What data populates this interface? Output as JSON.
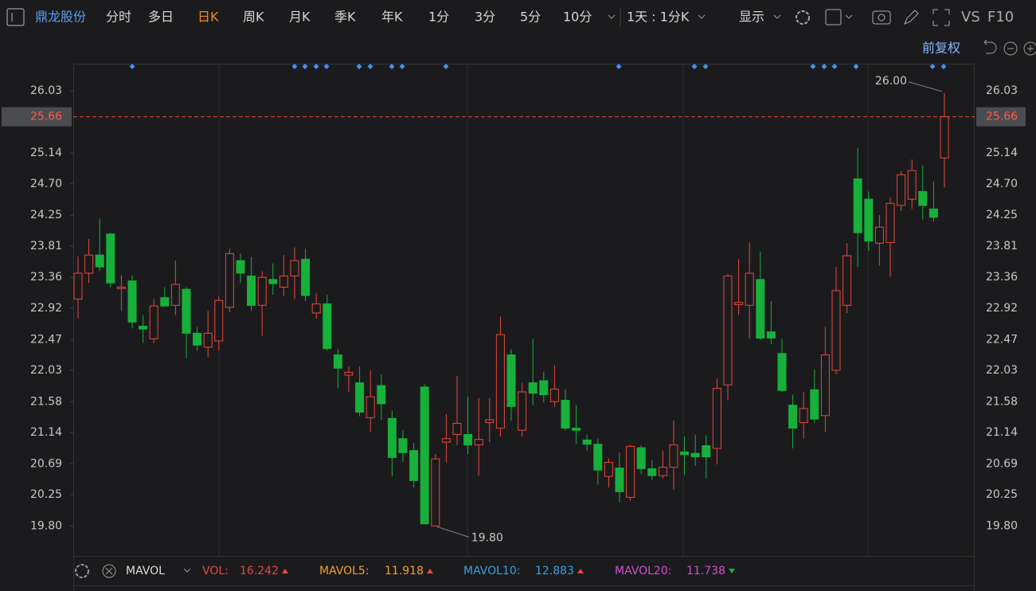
{
  "toolbar": {
    "stock_name": "鼎龙股份",
    "periods": [
      "分时",
      "多日",
      "日K",
      "周K",
      "月K",
      "季K",
      "年K",
      "1分",
      "3分",
      "5分",
      "10分"
    ],
    "active_period": "日K",
    "interval_select": "1天 : 1分K",
    "display": "显示",
    "vs": "VS",
    "f10": "F10",
    "adjust": "前复权"
  },
  "chart_data": {
    "type": "candlestick",
    "open": [
      23.05,
      23.42,
      23.68,
      23.98,
      23.2,
      23.31,
      22.66,
      22.48,
      23.07,
      22.96,
      23.19,
      22.56,
      22.36,
      22.45,
      22.93,
      23.6,
      23.38,
      22.96,
      23.33,
      23.22,
      23.38,
      23.62,
      22.85,
      22.98,
      22.25,
      21.96,
      21.85,
      21.35,
      21.81,
      21.34,
      21.05,
      20.88,
      21.79,
      19.8,
      21.0,
      21.11,
      21.11,
      20.96,
      21.28,
      21.2,
      22.25,
      21.17,
      21.85,
      21.88,
      21.58,
      21.6,
      21.2,
      21.03,
      20.97,
      20.51,
      20.63,
      20.21,
      20.92,
      20.62,
      20.52,
      20.64,
      20.86,
      20.84,
      20.95,
      20.91,
      21.82,
      22.97,
      22.96,
      23.33,
      22.58,
      22.27,
      21.53,
      21.28,
      21.75,
      21.38,
      22.03,
      22.96,
      24.77,
      24.48,
      23.85,
      23.86,
      24.39,
      24.48,
      24.59,
      24.34,
      25.07
    ],
    "high": [
      23.66,
      23.91,
      24.2,
      24.0,
      23.39,
      23.39,
      22.82,
      23.05,
      23.22,
      23.6,
      23.22,
      22.65,
      22.88,
      23.09,
      23.77,
      23.7,
      23.65,
      23.45,
      23.56,
      23.68,
      23.79,
      23.77,
      23.13,
      23.11,
      22.33,
      22.08,
      22.08,
      22.03,
      21.97,
      21.45,
      21.17,
      20.99,
      21.83,
      20.83,
      21.4,
      21.95,
      21.65,
      21.63,
      21.63,
      22.8,
      22.33,
      21.85,
      22.48,
      22.01,
      22.1,
      21.76,
      21.53,
      21.11,
      21.05,
      20.77,
      20.85,
      20.96,
      20.96,
      20.74,
      20.88,
      21.31,
      21.08,
      21.11,
      21.1,
      21.91,
      23.41,
      23.62,
      23.86,
      23.73,
      23.02,
      22.48,
      21.68,
      21.72,
      22.04,
      22.65,
      23.51,
      23.85,
      25.21,
      24.59,
      24.25,
      24.5,
      24.88,
      25.05,
      24.96,
      24.73,
      26.0
    ],
    "low": [
      22.77,
      23.28,
      23.45,
      23.22,
      22.88,
      22.63,
      22.42,
      22.42,
      22.94,
      22.82,
      22.2,
      22.31,
      22.22,
      22.31,
      22.86,
      23.28,
      22.88,
      22.52,
      23.11,
      23.09,
      23.05,
      23.02,
      22.77,
      22.31,
      21.77,
      21.72,
      21.37,
      21.15,
      21.32,
      20.51,
      20.71,
      20.35,
      19.82,
      19.8,
      20.71,
      20.96,
      20.83,
      20.52,
      21.0,
      21.08,
      21.31,
      21.08,
      21.53,
      21.57,
      21.51,
      21.17,
      20.97,
      20.88,
      20.39,
      20.35,
      20.14,
      20.16,
      20.54,
      20.46,
      20.48,
      20.32,
      20.53,
      20.66,
      20.48,
      20.68,
      21.6,
      22.82,
      22.48,
      22.46,
      22.4,
      21.72,
      20.91,
      21.05,
      21.28,
      21.15,
      21.97,
      22.85,
      23.51,
      23.74,
      23.53,
      23.37,
      24.31,
      24.34,
      24.19,
      24.16,
      24.65
    ],
    "close": [
      23.42,
      23.68,
      23.51,
      23.28,
      23.22,
      22.72,
      22.62,
      22.95,
      22.95,
      23.26,
      22.56,
      22.39,
      22.56,
      23.03,
      23.7,
      23.42,
      22.96,
      23.36,
      23.27,
      23.38,
      23.6,
      23.1,
      22.98,
      22.34,
      22.06,
      22.0,
      21.43,
      21.65,
      21.55,
      20.78,
      20.85,
      20.45,
      19.83,
      20.76,
      21.05,
      21.27,
      20.96,
      21.04,
      21.32,
      22.54,
      21.51,
      21.72,
      21.7,
      21.68,
      21.76,
      21.2,
      21.17,
      20.97,
      20.6,
      20.71,
      20.29,
      20.94,
      20.62,
      20.52,
      20.64,
      20.96,
      20.82,
      20.79,
      20.79,
      21.77,
      23.38,
      23.0,
      23.42,
      22.49,
      22.49,
      21.74,
      21.2,
      21.48,
      21.33,
      22.25,
      23.17,
      23.67,
      24.0,
      23.88,
      24.08,
      24.42,
      24.83,
      24.89,
      24.39,
      24.22,
      25.66
    ],
    "up_color": "#e8473c",
    "down_color": "#17b03b",
    "ylim": [
      19.37,
      26.42
    ],
    "yticks": [
      26.03,
      25.14,
      {
        "value": 24.7,
        "label": "24.70"
      },
      24.25,
      23.81,
      23.36,
      22.92,
      22.47,
      22.03,
      21.58,
      21.14,
      20.69,
      20.25,
      {
        "value": 19.8,
        "label": "19.80"
      }
    ],
    "last_price": {
      "value": 25.66,
      "label": "25.66"
    },
    "max_label": "26.00",
    "min_label": "19.80"
  },
  "indicator_bar": {
    "name": "MAVOL",
    "items": [
      {
        "label": "VOL:",
        "value": "16.242",
        "color": "#e8473c"
      },
      {
        "label": "MAVOL5:",
        "value": "11.918",
        "color": "#f0a030"
      },
      {
        "label": "MAVOL10:",
        "value": "12.883",
        "color": "#3aa0e0"
      },
      {
        "label": "MAVOL20:",
        "value": "11.738",
        "color": "#d050d0"
      }
    ]
  }
}
